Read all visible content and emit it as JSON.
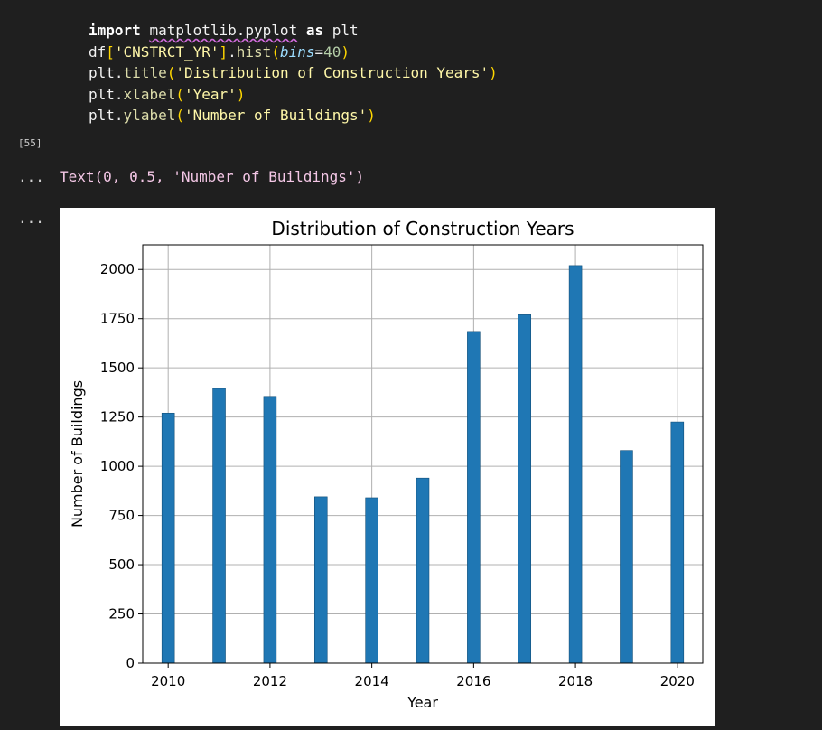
{
  "code_cell": {
    "lines": [
      [
        {
          "t": "import",
          "c": "kw"
        },
        {
          "t": " ",
          "c": "pl"
        },
        {
          "t": "matplotlib.pyplot",
          "c": "var squiggle"
        },
        {
          "t": " ",
          "c": "pl"
        },
        {
          "t": "as",
          "c": "kw"
        },
        {
          "t": " plt",
          "c": "var"
        }
      ],
      [
        {
          "t": "df",
          "c": "var"
        },
        {
          "t": "[",
          "c": "pn"
        },
        {
          "t": "'CNSTRCT_YR'",
          "c": "str"
        },
        {
          "t": "]",
          "c": "pn"
        },
        {
          "t": ".",
          "c": "pl"
        },
        {
          "t": "hist",
          "c": "fn"
        },
        {
          "t": "(",
          "c": "pn"
        },
        {
          "t": "bins",
          "c": "param"
        },
        {
          "t": "=",
          "c": "pl"
        },
        {
          "t": "40",
          "c": "num"
        },
        {
          "t": ")",
          "c": "pn"
        }
      ],
      [
        {
          "t": "plt",
          "c": "var"
        },
        {
          "t": ".",
          "c": "pl"
        },
        {
          "t": "title",
          "c": "fn"
        },
        {
          "t": "(",
          "c": "pn"
        },
        {
          "t": "'Distribution of Construction Years'",
          "c": "str"
        },
        {
          "t": ")",
          "c": "pn"
        }
      ],
      [
        {
          "t": "plt",
          "c": "var"
        },
        {
          "t": ".",
          "c": "pl"
        },
        {
          "t": "xlabel",
          "c": "fn"
        },
        {
          "t": "(",
          "c": "pn"
        },
        {
          "t": "'Year'",
          "c": "str"
        },
        {
          "t": ")",
          "c": "pn"
        }
      ],
      [
        {
          "t": "plt",
          "c": "var"
        },
        {
          "t": ".",
          "c": "pl"
        },
        {
          "t": "ylabel",
          "c": "fn"
        },
        {
          "t": "(",
          "c": "pn"
        },
        {
          "t": "'Number of Buildings'",
          "c": "str"
        },
        {
          "t": ")",
          "c": "pn"
        }
      ]
    ],
    "execution_count": "[55]"
  },
  "output": {
    "ellipsis_1": "...",
    "text_repr": "Text(0, 0.5, 'Number of Buildings')",
    "ellipsis_2": "..."
  },
  "chart_data": {
    "type": "bar",
    "title": "Distribution of Construction Years",
    "xlabel": "Year",
    "ylabel": "Number of Buildings",
    "categories": [
      "2010",
      "2011",
      "2012",
      "2013",
      "2014",
      "2015",
      "2016",
      "2017",
      "2018",
      "2019",
      "2020"
    ],
    "values": [
      1270,
      1395,
      1355,
      845,
      840,
      940,
      1685,
      1770,
      2020,
      1080,
      1225
    ],
    "xlim": [
      2009.5,
      2020.5
    ],
    "ylim": [
      0,
      2125
    ],
    "xticks": [
      2010,
      2012,
      2014,
      2016,
      2018,
      2020
    ],
    "yticks": [
      0,
      250,
      500,
      750,
      1000,
      1250,
      1500,
      1750,
      2000
    ],
    "grid": true,
    "bar_color": "#1f77b4"
  }
}
